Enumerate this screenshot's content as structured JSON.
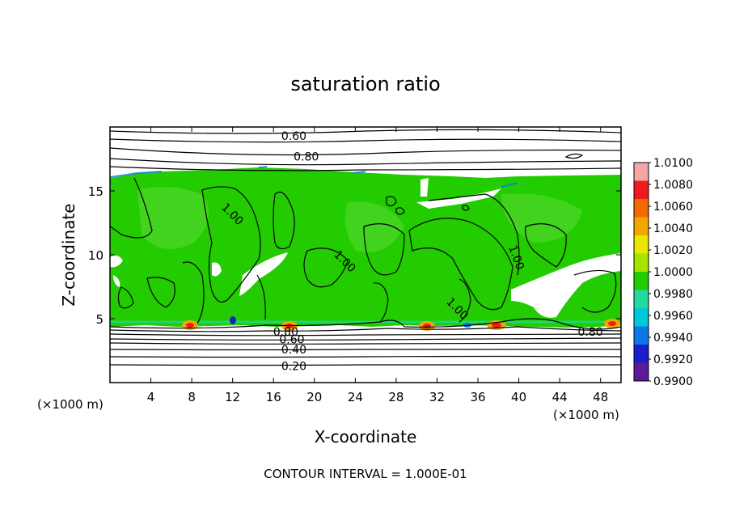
{
  "chart_data": {
    "type": "heatmap",
    "title": "saturation ratio",
    "xlabel": "X-coordinate",
    "ylabel": "Z-coordinate",
    "x_unit_label": "(×1000 m)",
    "x_unit_label_right": "(×1000 m)",
    "xlim": [
      0,
      50
    ],
    "ylim": [
      0,
      20
    ],
    "x_ticks": [
      "4",
      "8",
      "12",
      "16",
      "20",
      "24",
      "28",
      "32",
      "36",
      "40",
      "44",
      "48"
    ],
    "y_ticks": [
      "5",
      "10",
      "15"
    ],
    "colorbar": {
      "min": 0.99,
      "max": 1.01,
      "ticks": [
        "1.0100",
        "1.0080",
        "1.0060",
        "1.0040",
        "1.0020",
        "1.0000",
        "0.9980",
        "0.9960",
        "0.9940",
        "0.9920",
        "0.9900"
      ],
      "colors": [
        "#f3a6a6",
        "#ee1c1c",
        "#f26a00",
        "#f2a700",
        "#e8e800",
        "#a6e400",
        "#22cc00",
        "#22d9a0",
        "#00c8d8",
        "#0a78e6",
        "#1a20c8",
        "#5c1a9a"
      ]
    },
    "contour_labels": [
      {
        "text": "0.60",
        "x": 18.0,
        "y": 19.3
      },
      {
        "text": "0.80",
        "x": 19.2,
        "y": 17.7
      },
      {
        "text": "1.00",
        "x": 12.0,
        "y": 13.2
      },
      {
        "text": "1.00",
        "x": 23.0,
        "y": 9.5
      },
      {
        "text": "1.00",
        "x": 39.8,
        "y": 9.8
      },
      {
        "text": "1.00",
        "x": 34.0,
        "y": 5.8
      },
      {
        "text": "0.80",
        "x": 47.0,
        "y": 4.0
      },
      {
        "text": "0.80",
        "x": 17.2,
        "y": 4.0
      },
      {
        "text": "0.60",
        "x": 17.8,
        "y": 3.4
      },
      {
        "text": "0.40",
        "x": 18.0,
        "y": 2.6
      },
      {
        "text": "0.20",
        "x": 18.0,
        "y": 1.3
      }
    ],
    "contour_interval_text": "CONTOUR INTERVAL = 1.000E-01",
    "regions": {
      "cloud_base_z": 4.6,
      "cloud_top_z": 16.0,
      "dominant_value": 1.0
    }
  }
}
